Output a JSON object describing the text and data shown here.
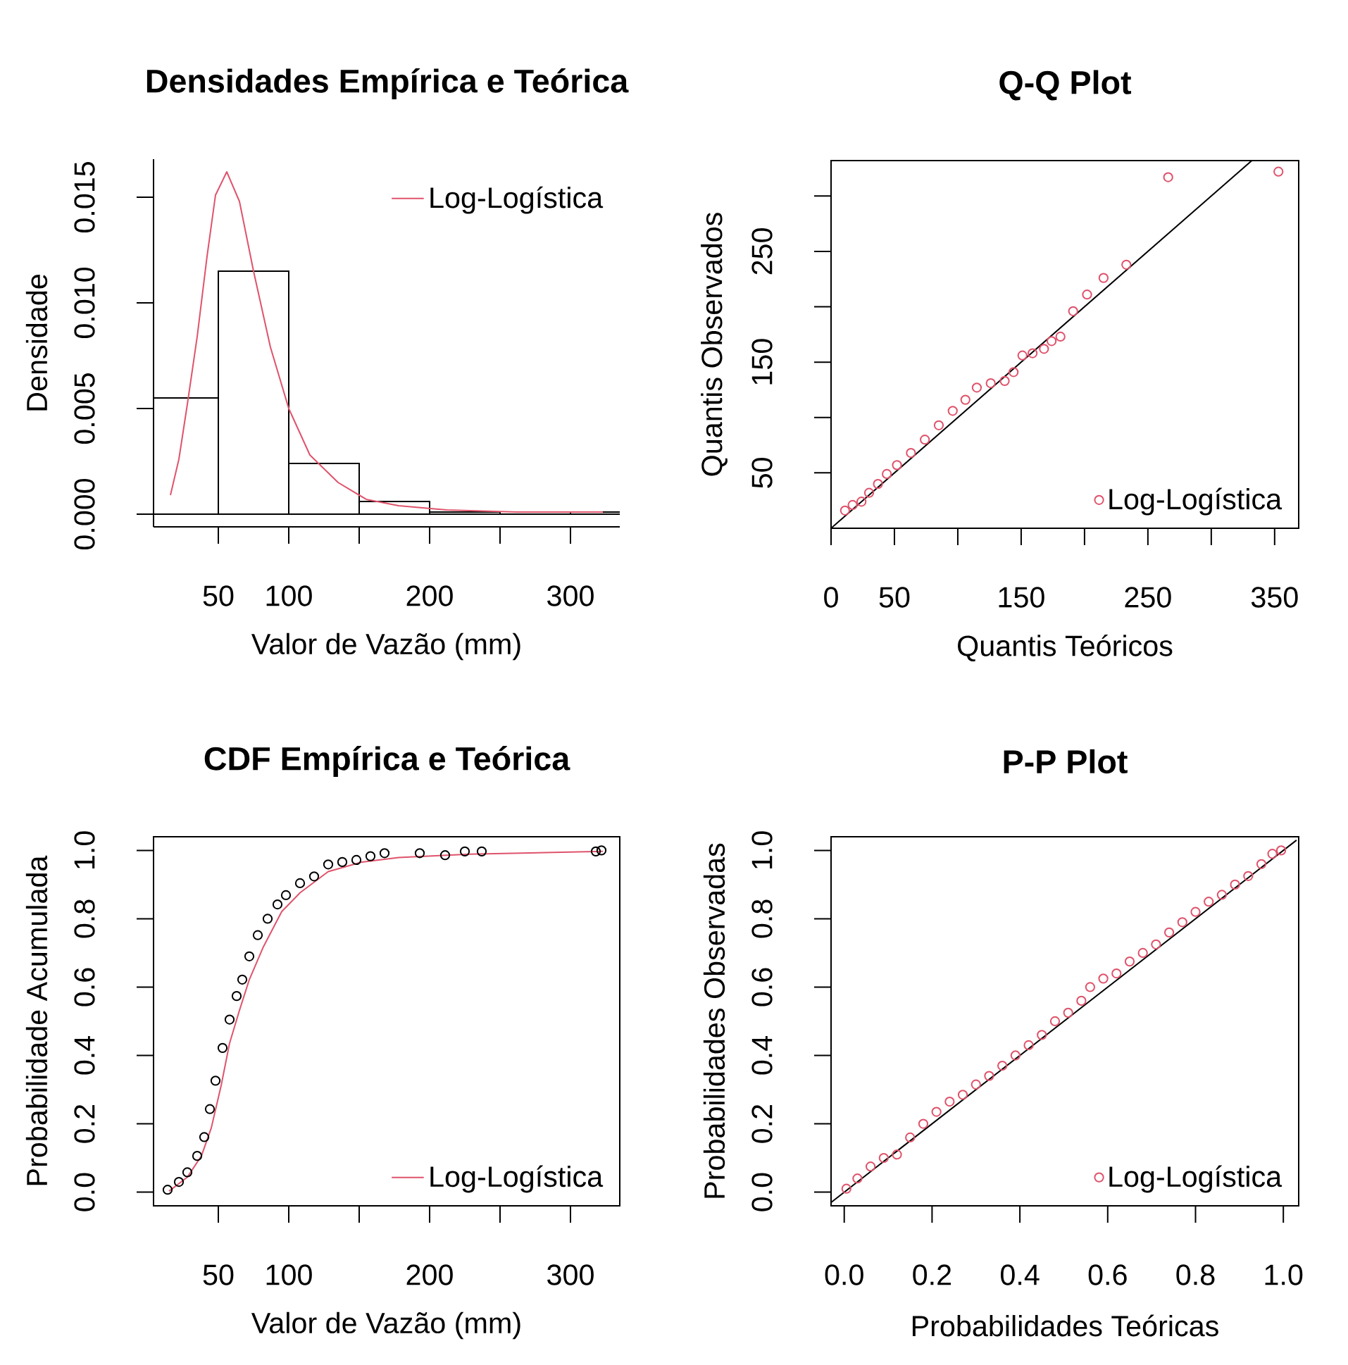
{
  "chart_data": [
    {
      "type": "histogram",
      "title": "Densidades Empírica e Teórica",
      "xlabel": "Valor de Vazão (mm)",
      "ylabel": "Densidade",
      "xlim": [
        4,
        335
      ],
      "ylim": [
        -0.0006,
        0.0168
      ],
      "xticks": [
        50,
        100,
        {
          "value": 150,
          "label": null
        },
        200,
        {
          "value": 250,
          "label": null
        },
        300
      ],
      "yticks": [
        {
          "value": 0,
          "label": "0.000"
        },
        {
          "value": 0.005,
          "label": "0.005"
        },
        {
          "value": 0.01,
          "label": "0.010"
        },
        {
          "value": 0.015,
          "label": "0.015"
        }
      ],
      "legend": "top right",
      "series": [
        {
          "type": "histogram",
          "color": "#000000",
          "bins": [
            0,
            50,
            100,
            150,
            200,
            250,
            300,
            350
          ],
          "values": [
            0.0055,
            0.0115,
            0.0024,
            0.0006,
            0.0001,
            0,
            0.0001
          ]
        },
        {
          "type": "line",
          "name": "Log-Logística",
          "color": "#df536b",
          "x": [
            16,
            22,
            28,
            35,
            42,
            48,
            56,
            65,
            75,
            87,
            100,
            115,
            135,
            155,
            178,
            212,
            262,
            323
          ],
          "values": [
            0.0009,
            0.0026,
            0.0052,
            0.0084,
            0.0122,
            0.0151,
            0.0162,
            0.0148,
            0.0115,
            0.0079,
            0.005,
            0.0028,
            0.0015,
            0.0007,
            0.0004,
            0.0002,
            0.0001,
            0.0001
          ]
        }
      ]
    },
    {
      "type": "scatter",
      "title": "Q-Q Plot",
      "xlabel": "Quantis Teóricos",
      "ylabel": "Quantis Observados",
      "xlim": [
        0,
        369
      ],
      "ylim": [
        0,
        332
      ],
      "xticks": [
        0,
        50,
        {
          "value": 100,
          "label": null
        },
        150,
        {
          "value": 200,
          "label": null
        },
        250,
        {
          "value": 300,
          "label": null
        },
        350
      ],
      "yticks": [
        50,
        {
          "value": 100,
          "label": null
        },
        150,
        {
          "value": 200,
          "label": null
        },
        250,
        {
          "value": 300,
          "label": null
        }
      ],
      "legend": "bottom right",
      "series": [
        {
          "type": "scatter",
          "marker": "circle",
          "name": "Log-Logística",
          "color": "#df536b",
          "x": [
            11,
            17,
            24,
            30,
            37,
            44,
            52,
            63,
            74,
            85,
            96,
            106,
            115,
            126,
            137,
            144,
            151,
            159,
            168,
            174,
            181,
            191,
            202,
            215,
            233,
            266,
            353
          ],
          "values": [
            16,
            21,
            24,
            32,
            40,
            49,
            57,
            68,
            80,
            93,
            106,
            116,
            127,
            131,
            133,
            141,
            156,
            158,
            162,
            169,
            173,
            196,
            211,
            226,
            238,
            317,
            322
          ]
        },
        {
          "type": "line",
          "color": "#000000",
          "x": [
            0,
            332
          ],
          "values": [
            0,
            332
          ]
        }
      ]
    },
    {
      "type": "scatter",
      "title": "CDF Empírica e Teórica",
      "xlabel": "Valor de Vazão (mm)",
      "ylabel": "Probabilidade Acumulada",
      "xlim": [
        4,
        335
      ],
      "ylim": [
        -0.04,
        1.04
      ],
      "xticks": [
        50,
        100,
        {
          "value": 150,
          "label": null
        },
        200,
        {
          "value": 250,
          "label": null
        },
        300
      ],
      "yticks": [
        {
          "value": 0,
          "label": "0.0"
        },
        0.2,
        0.4,
        0.6,
        0.8,
        {
          "value": 1,
          "label": "1.0"
        }
      ],
      "legend": "bottom right",
      "series": [
        {
          "type": "scatter",
          "marker": "circle",
          "color": "#000000",
          "x": [
            14,
            22,
            28,
            35,
            40,
            44,
            48,
            53,
            58,
            63,
            67,
            72,
            78,
            85,
            92,
            98,
            108,
            118,
            128,
            138,
            148,
            158,
            168,
            193,
            211,
            225,
            237,
            318,
            322
          ],
          "values": [
            0.007,
            0.03,
            0.058,
            0.106,
            0.161,
            0.243,
            0.326,
            0.422,
            0.505,
            0.574,
            0.622,
            0.69,
            0.752,
            0.8,
            0.842,
            0.869,
            0.904,
            0.924,
            0.959,
            0.966,
            0.972,
            0.983,
            0.992,
            0.992,
            0.986,
            0.997,
            0.997,
            0.997,
            1.0
          ]
        },
        {
          "type": "line",
          "name": "Log-Logística",
          "color": "#df536b",
          "x": [
            15,
            28,
            38,
            45,
            52,
            58,
            65,
            72,
            82,
            95,
            108,
            128,
            152,
            178,
            228,
            323
          ],
          "values": [
            0.003,
            0.044,
            0.106,
            0.188,
            0.312,
            0.436,
            0.532,
            0.622,
            0.718,
            0.821,
            0.876,
            0.938,
            0.966,
            0.979,
            0.989,
            0.997
          ]
        }
      ]
    },
    {
      "type": "scatter",
      "title": "P-P Plot",
      "xlabel": "Probabilidades Teóricas",
      "ylabel": "Probabilidades Observadas",
      "xlim": [
        -0.03,
        1.035
      ],
      "ylim": [
        -0.04,
        1.04
      ],
      "xticks": [
        {
          "value": 0,
          "label": "0.0"
        },
        0.2,
        0.4,
        0.6,
        0.8,
        {
          "value": 1,
          "label": "1.0"
        }
      ],
      "yticks": [
        {
          "value": 0,
          "label": "0.0"
        },
        0.2,
        0.4,
        0.6,
        0.8,
        {
          "value": 1,
          "label": "1.0"
        }
      ],
      "legend": "bottom right",
      "series": [
        {
          "type": "scatter",
          "marker": "circle",
          "name": "Log-Logística",
          "color": "#df536b",
          "x": [
            0.005,
            0.03,
            0.06,
            0.09,
            0.12,
            0.15,
            0.18,
            0.21,
            0.24,
            0.27,
            0.3,
            0.33,
            0.36,
            0.39,
            0.42,
            0.45,
            0.48,
            0.51,
            0.54,
            0.56,
            0.59,
            0.62,
            0.65,
            0.68,
            0.71,
            0.74,
            0.77,
            0.8,
            0.83,
            0.86,
            0.89,
            0.92,
            0.95,
            0.975,
            0.995
          ],
          "values": [
            0.01,
            0.04,
            0.075,
            0.1,
            0.11,
            0.16,
            0.2,
            0.235,
            0.265,
            0.285,
            0.315,
            0.34,
            0.37,
            0.4,
            0.43,
            0.46,
            0.5,
            0.525,
            0.56,
            0.6,
            0.625,
            0.64,
            0.675,
            0.7,
            0.725,
            0.76,
            0.79,
            0.82,
            0.85,
            0.87,
            0.9,
            0.925,
            0.96,
            0.99,
            1.0
          ]
        },
        {
          "type": "line",
          "color": "#000000",
          "x": [
            -0.03,
            1.03
          ],
          "values": [
            -0.03,
            1.03
          ]
        }
      ]
    }
  ]
}
